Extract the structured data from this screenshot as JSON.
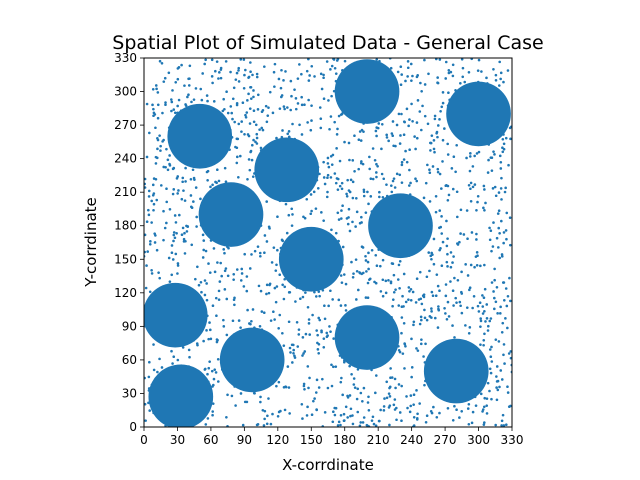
{
  "chart_data": {
    "type": "scatter",
    "title": "Spatial Plot of Simulated Data - General Case",
    "xlabel": "X-corrdinate",
    "ylabel": "Y-corrdinate",
    "xlim": [
      0,
      330
    ],
    "ylim": [
      0,
      330
    ],
    "xticks": [
      "0",
      "30",
      "60",
      "90",
      "120",
      "150",
      "180",
      "210",
      "240",
      "270",
      "300",
      "330"
    ],
    "yticks": [
      "0",
      "30",
      "60",
      "90",
      "120",
      "150",
      "180",
      "210",
      "240",
      "270",
      "300",
      "330"
    ],
    "grid": false,
    "legend": "none",
    "color": "#1f77b4",
    "series": [
      {
        "marker": "large-circle",
        "diameter_data_units": 58,
        "points": [
          {
            "x": 50,
            "y": 260
          },
          {
            "x": 200,
            "y": 300
          },
          {
            "x": 300,
            "y": 280
          },
          {
            "x": 128,
            "y": 230
          },
          {
            "x": 78,
            "y": 190
          },
          {
            "x": 230,
            "y": 180
          },
          {
            "x": 150,
            "y": 150
          },
          {
            "x": 28,
            "y": 100
          },
          {
            "x": 200,
            "y": 80
          },
          {
            "x": 97,
            "y": 60
          },
          {
            "x": 280,
            "y": 50
          },
          {
            "x": 33,
            "y": 27
          }
        ]
      },
      {
        "marker": "small-dot",
        "count_approx": 2000,
        "distribution": "uniform random over [0,330] x [0,330]"
      }
    ]
  }
}
